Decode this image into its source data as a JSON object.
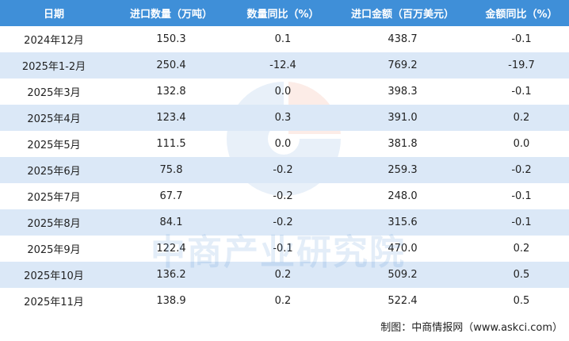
{
  "table": {
    "header": [
      "日期",
      "进口数量（万吨）",
      "数量同比（%）",
      "进口金额（百万美元）",
      "金额同比（%）"
    ],
    "rows": [
      [
        "2024年12月",
        "150.3",
        "0.1",
        "438.7",
        "-0.1"
      ],
      [
        "2025年1-2月",
        "250.4",
        "-12.4",
        "769.2",
        "-19.7"
      ],
      [
        "2025年3月",
        "132.8",
        "0.0",
        "398.3",
        "-0.1"
      ],
      [
        "2025年4月",
        "123.4",
        "0.3",
        "391.0",
        "0.2"
      ],
      [
        "2025年5月",
        "111.5",
        "0.0",
        "381.8",
        "0.0"
      ],
      [
        "2025年6月",
        "75.8",
        "-0.2",
        "259.3",
        "-0.2"
      ],
      [
        "2025年7月",
        "67.7",
        "-0.2",
        "248.0",
        "-0.1"
      ],
      [
        "2025年8月",
        "84.1",
        "-0.2",
        "315.6",
        "-0.1"
      ],
      [
        "2025年9月",
        "122.4",
        "-0.1",
        "470.0",
        "0.2"
      ],
      [
        "2025年10月",
        "136.2",
        "0.2",
        "509.2",
        "0.5"
      ],
      [
        "2025年11月",
        "138.9",
        "0.2",
        "522.4",
        "0.5"
      ]
    ]
  },
  "watermark": "中商产业研究院",
  "footer": "制图：中商情报网（www.askci.com）"
}
